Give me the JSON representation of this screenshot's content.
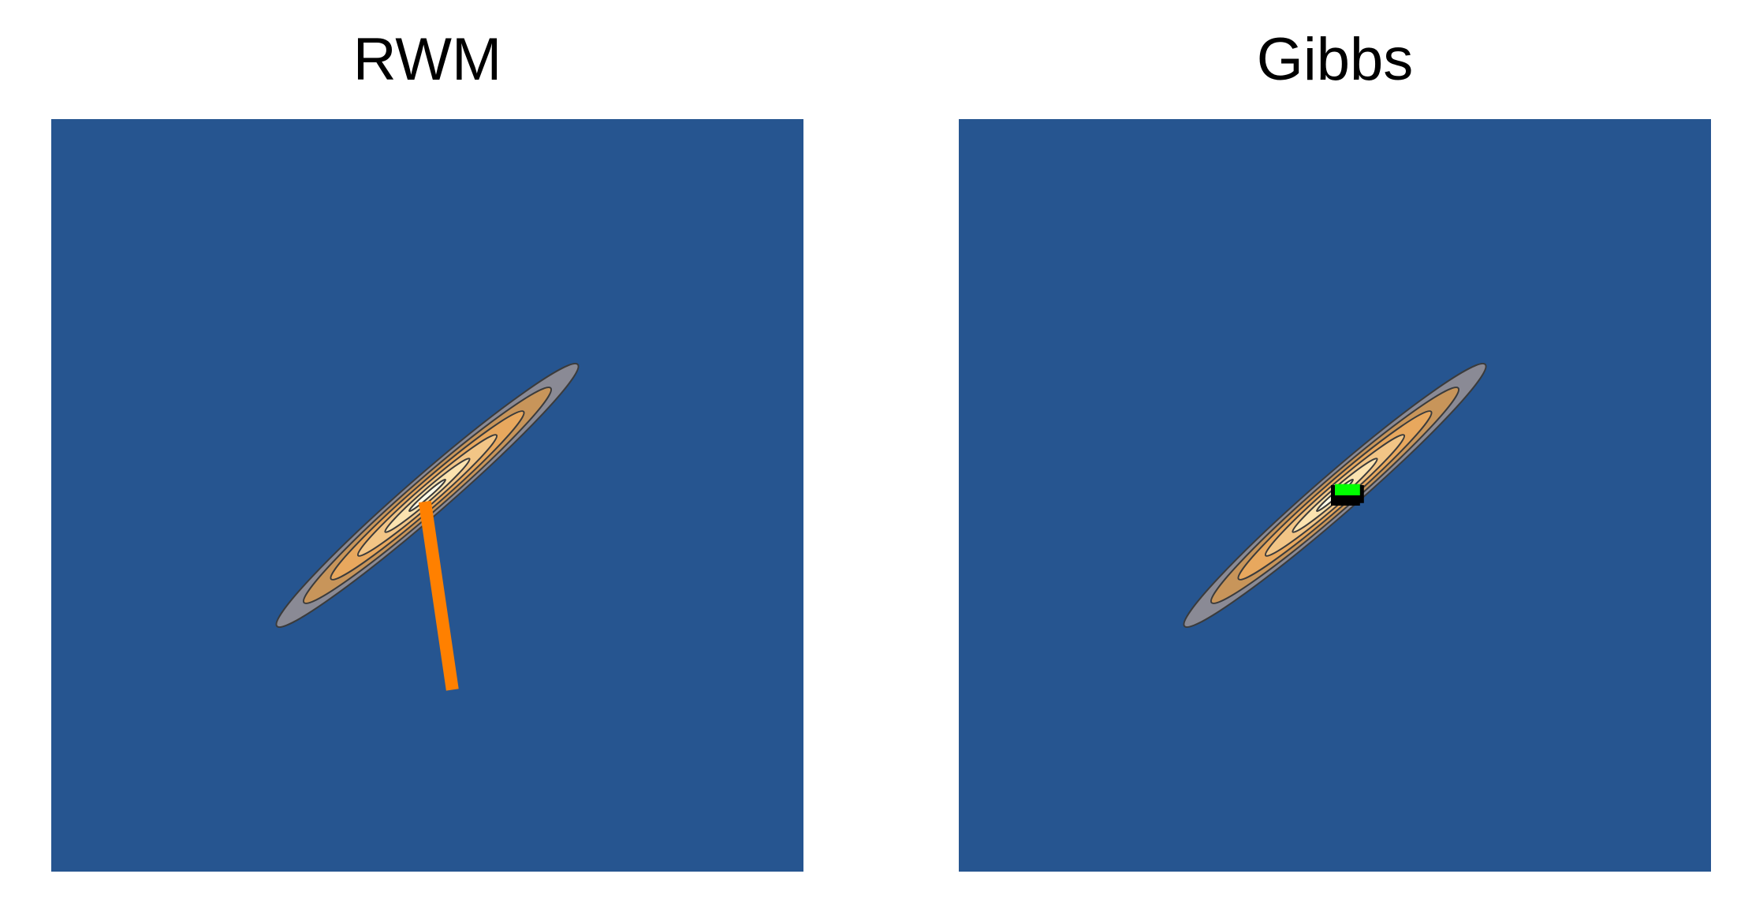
{
  "chart_data": [
    {
      "type": "contour",
      "title": "RWM",
      "xlim": [
        -3,
        3
      ],
      "ylim": [
        -3,
        3
      ],
      "grid": false,
      "target": {
        "mean": [
          0,
          0
        ],
        "major_sd": 1.59,
        "minor_sd": 0.16,
        "angle_deg": 41,
        "levels": [
          {
            "scale": 1.0,
            "color": "#8a8a95"
          },
          {
            "scale": 0.82,
            "color": "#c8955a"
          },
          {
            "scale": 0.64,
            "color": "#e8a85e"
          },
          {
            "scale": 0.46,
            "color": "#f2c586"
          },
          {
            "scale": 0.28,
            "color": "#fbe3b0"
          },
          {
            "scale": 0.12,
            "color": "#fffde8"
          }
        ]
      },
      "trace": {
        "color": "#ff8000",
        "points": [
          [
            -0.02,
            -0.05
          ],
          [
            0.2,
            -1.55
          ]
        ]
      }
    },
    {
      "type": "contour",
      "title": "Gibbs",
      "xlim": [
        -3,
        3
      ],
      "ylim": [
        -3,
        3
      ],
      "grid": false,
      "target": {
        "mean": [
          0,
          0
        ],
        "major_sd": 1.59,
        "minor_sd": 0.16,
        "angle_deg": 41,
        "levels": [
          {
            "scale": 1.0,
            "color": "#8a8a95"
          },
          {
            "scale": 0.82,
            "color": "#c8955a"
          },
          {
            "scale": 0.64,
            "color": "#e8a85e"
          },
          {
            "scale": 0.46,
            "color": "#f2c586"
          },
          {
            "scale": 0.28,
            "color": "#fbe3b0"
          },
          {
            "scale": 0.12,
            "color": "#fffde8"
          }
        ]
      },
      "trace": {
        "color": "#000000",
        "points": [
          [
            0.0,
            -0.03
          ],
          [
            0.2,
            -0.03
          ],
          [
            0.2,
            0.05
          ],
          [
            0.0,
            0.05
          ],
          [
            0.0,
            -0.05
          ],
          [
            0.2,
            -0.05
          ]
        ]
      },
      "current_state": {
        "color": "#00ff00",
        "x": [
          0.0,
          0.2
        ],
        "y": [
          0.0,
          0.09
        ]
      }
    }
  ],
  "style": {
    "panel_background": "#265590",
    "contour_outline": "#3b3b3b"
  }
}
